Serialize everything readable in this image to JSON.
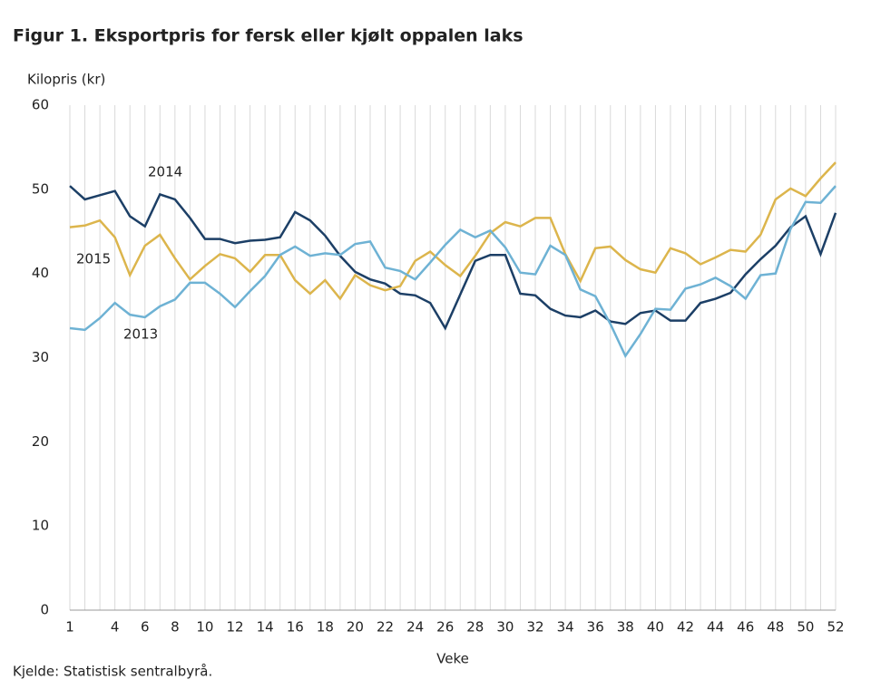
{
  "chart_data": {
    "type": "line",
    "title": "Figur 1. Eksportpris for fersk eller kjølt oppalen laks",
    "y_label": "Kilopris  (kr)",
    "x_label": "Veke",
    "source": "Kjelde: Statistisk sentralbyrå.",
    "x": [
      1,
      2,
      3,
      4,
      5,
      6,
      7,
      8,
      9,
      10,
      11,
      12,
      13,
      14,
      15,
      16,
      17,
      18,
      19,
      20,
      21,
      22,
      23,
      24,
      25,
      26,
      27,
      28,
      29,
      30,
      31,
      32,
      33,
      34,
      35,
      36,
      37,
      38,
      39,
      40,
      41,
      42,
      43,
      44,
      45,
      46,
      47,
      48,
      49,
      50,
      51,
      52
    ],
    "xlim": [
      1,
      52
    ],
    "xticks": [
      1,
      4,
      6,
      8,
      10,
      12,
      14,
      16,
      18,
      20,
      22,
      24,
      26,
      28,
      30,
      32,
      34,
      36,
      38,
      40,
      42,
      44,
      46,
      48,
      50,
      52
    ],
    "ylim": [
      0,
      60
    ],
    "yticks": [
      0,
      10,
      20,
      30,
      40,
      50,
      60
    ],
    "grid": "x",
    "series": [
      {
        "name": "2014",
        "color": "#1c3f66",
        "values": [
          50.4,
          48.8,
          49.3,
          49.8,
          46.8,
          45.6,
          49.4,
          48.8,
          46.6,
          44.1,
          44.1,
          43.6,
          43.9,
          44.0,
          44.3,
          47.3,
          46.3,
          44.5,
          42.1,
          40.2,
          39.3,
          38.8,
          37.6,
          37.4,
          36.5,
          33.5,
          37.5,
          41.5,
          42.2,
          42.2,
          37.6,
          37.4,
          35.8,
          35.0,
          34.8,
          35.6,
          34.3,
          34.0,
          35.3,
          35.6,
          34.4,
          34.4,
          36.5,
          37.0,
          37.7,
          39.9,
          41.7,
          43.3,
          45.5,
          46.8,
          42.3,
          47.2
        ]
      },
      {
        "name": "2015",
        "color": "#dcb54c",
        "values": [
          45.5,
          45.7,
          46.3,
          44.3,
          39.8,
          43.3,
          44.6,
          41.8,
          39.3,
          40.9,
          42.3,
          41.8,
          40.2,
          42.2,
          42.2,
          39.2,
          37.6,
          39.2,
          37.0,
          39.8,
          38.6,
          38.0,
          38.5,
          41.5,
          42.6,
          41.0,
          39.7,
          42.1,
          44.8,
          46.1,
          45.6,
          46.6,
          46.6,
          42.3,
          39.1,
          43.0,
          43.2,
          41.6,
          40.5,
          40.1,
          43.0,
          42.4,
          41.1,
          41.9,
          42.8,
          42.6,
          44.6,
          48.8,
          50.1,
          49.2,
          51.3,
          53.2
        ]
      },
      {
        "name": "2013",
        "color": "#6eb2d4",
        "values": [
          33.5,
          33.3,
          34.7,
          36.5,
          35.1,
          34.8,
          36.1,
          36.9,
          38.9,
          38.9,
          37.6,
          36.0,
          37.9,
          39.7,
          42.2,
          43.2,
          42.1,
          42.4,
          42.2,
          43.5,
          43.8,
          40.7,
          40.3,
          39.3,
          41.3,
          43.4,
          45.2,
          44.3,
          45.1,
          43.1,
          40.1,
          39.9,
          43.3,
          42.2,
          38.1,
          37.3,
          34.0,
          30.2,
          32.8,
          35.8,
          35.7,
          38.2,
          38.7,
          39.5,
          38.5,
          37.0,
          39.8,
          40.0,
          45.3,
          48.5,
          48.4,
          50.4
        ]
      }
    ]
  }
}
